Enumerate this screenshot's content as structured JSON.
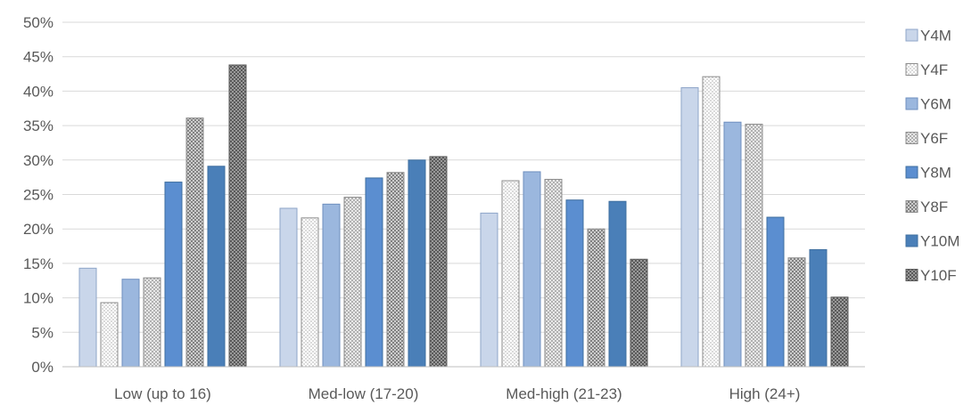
{
  "chart_data": {
    "type": "bar",
    "categories": [
      "Low (up to 16)",
      "Med-low (17-20)",
      "Med-high (21-23)",
      "High (24+)"
    ],
    "series": [
      {
        "name": "Y4M",
        "values": [
          14.3,
          23.0,
          22.3,
          40.5
        ],
        "color": "#c9d6ea",
        "pattern": "solid"
      },
      {
        "name": "Y4F",
        "values": [
          9.3,
          21.6,
          27.0,
          42.1
        ],
        "color": "#f2f2f2",
        "pattern": "dots"
      },
      {
        "name": "Y6M",
        "values": [
          12.7,
          23.6,
          28.3,
          35.5
        ],
        "color": "#9bb7de",
        "pattern": "solid"
      },
      {
        "name": "Y6F",
        "values": [
          12.9,
          24.6,
          27.2,
          35.2
        ],
        "color": "#d9d9d9",
        "pattern": "dots"
      },
      {
        "name": "Y8M",
        "values": [
          26.8,
          27.4,
          24.2,
          21.7
        ],
        "color": "#5b8ed0",
        "pattern": "solid"
      },
      {
        "name": "Y8F",
        "values": [
          36.1,
          28.2,
          20.0,
          15.8
        ],
        "color": "#a6a6a6",
        "pattern": "dots"
      },
      {
        "name": "Y10M",
        "values": [
          29.1,
          30.0,
          24.0,
          17.0
        ],
        "color": "#4a7fb8",
        "pattern": "solid"
      },
      {
        "name": "Y10F",
        "values": [
          43.8,
          30.5,
          15.6,
          10.1
        ],
        "color": "#7f7f7f",
        "pattern": "checks"
      }
    ],
    "yticks": [
      "0%",
      "5%",
      "10%",
      "15%",
      "20%",
      "25%",
      "30%",
      "35%",
      "40%",
      "45%",
      "50%"
    ],
    "ylim": [
      0,
      50
    ],
    "grid": true,
    "legend_position": "right"
  }
}
